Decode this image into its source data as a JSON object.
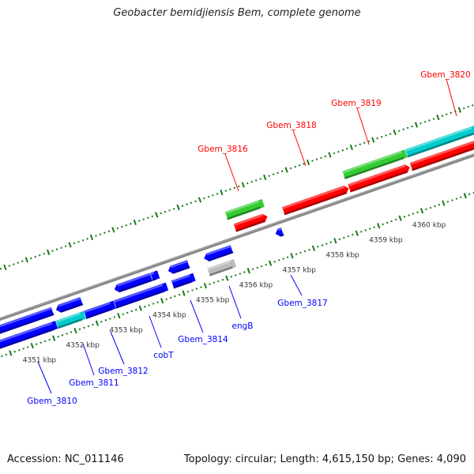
{
  "title": "Geobacter bemidjiensis Bem, complete genome",
  "footer": {
    "accession": "Accession: NC_011146",
    "topology": "Topology: circular; Length: 4,615,150 bp; Genes: 4,090"
  },
  "colors": {
    "forward_label": "#ff0000",
    "reverse_label": "#0000ff",
    "tick": "#1a7a1a",
    "backbone": "#888888"
  },
  "kbp_labels": [
    {
      "kbp": 4351,
      "text": "4351 kbp"
    },
    {
      "kbp": 4352,
      "text": "4352 kbp"
    },
    {
      "kbp": 4353,
      "text": "4353 kbp"
    },
    {
      "kbp": 4354,
      "text": "4354 kbp"
    },
    {
      "kbp": 4355,
      "text": "4355 kbp"
    },
    {
      "kbp": 4356,
      "text": "4356 kbp"
    },
    {
      "kbp": 4357,
      "text": "4357 kbp"
    },
    {
      "kbp": 4358,
      "text": "4358 kbp"
    },
    {
      "kbp": 4359,
      "text": "4359 kbp"
    },
    {
      "kbp": 4360,
      "text": "4360 kbp"
    }
  ],
  "gene_labels": {
    "forward": [
      "Gbem_3816",
      "Gbem_3818",
      "Gbem_3819",
      "Gbem_3820"
    ],
    "reverse": [
      "Gbem_3810",
      "Gbem_3811",
      "Gbem_3812",
      "cobT",
      "Gbem_3814",
      "engB",
      "Gbem_3817"
    ]
  },
  "features": [
    {
      "row": "r1",
      "start": 4350.33,
      "end": 4351.67,
      "color": "#0000ff",
      "arrow": "left"
    },
    {
      "row": "r1",
      "start": 4351.74,
      "end": 4352.34,
      "color": "#0000ff",
      "arrow": "left"
    },
    {
      "row": "r1",
      "start": 4353.09,
      "end": 4353.95,
      "color": "#0000ff",
      "arrow": "left"
    },
    {
      "row": "r1",
      "start": 4353.95,
      "end": 4354.12,
      "color": "#0000ff",
      "arrow": "none"
    },
    {
      "row": "r1",
      "start": 4354.33,
      "end": 4354.81,
      "color": "#0000ff",
      "arrow": "left"
    },
    {
      "row": "r1",
      "start": 4355.16,
      "end": 4355.81,
      "color": "#0000ff",
      "arrow": "left"
    },
    {
      "row": "r1",
      "start": 4356.81,
      "end": 4356.98,
      "color": "#0000ff",
      "arrow": "left"
    },
    {
      "row": "r2",
      "start": 4350.16,
      "end": 4351.66,
      "color": "#0000ff",
      "arrow": "none"
    },
    {
      "row": "r2",
      "start": 4351.66,
      "end": 4352.31,
      "color": "#00cccc",
      "arrow": "none"
    },
    {
      "row": "r2",
      "start": 4352.31,
      "end": 4353.0,
      "color": "#0000ff",
      "arrow": "none"
    },
    {
      "row": "r2",
      "start": 4353.0,
      "end": 4354.21,
      "color": "#0000ff",
      "arrow": "none"
    },
    {
      "row": "r2",
      "start": 4354.33,
      "end": 4354.84,
      "color": "#0000ff",
      "arrow": "none"
    },
    {
      "row": "r2",
      "start": 4355.16,
      "end": 4355.78,
      "color": "#bbbbbb",
      "arrow": "none"
    },
    {
      "row": "f1",
      "start": 4356.02,
      "end": 4356.78,
      "color": "#ff0000",
      "arrow": "right"
    },
    {
      "row": "f1",
      "start": 4357.14,
      "end": 4358.66,
      "color": "#ff0000",
      "arrow": "right"
    },
    {
      "row": "f1",
      "start": 4358.66,
      "end": 4360.07,
      "color": "#ff0000",
      "arrow": "right"
    },
    {
      "row": "f1",
      "start": 4360.09,
      "end": 4361.71,
      "color": "#ff0000",
      "arrow": "right"
    },
    {
      "row": "f2",
      "start": 4355.93,
      "end": 4356.79,
      "color": "#33cc33",
      "arrow": "none"
    },
    {
      "row": "f2",
      "start": 4358.64,
      "end": 4360.09,
      "color": "#33cc33",
      "arrow": "none"
    },
    {
      "row": "f2",
      "start": 4360.09,
      "end": 4361.71,
      "color": "#00cccc",
      "arrow": "none"
    }
  ]
}
